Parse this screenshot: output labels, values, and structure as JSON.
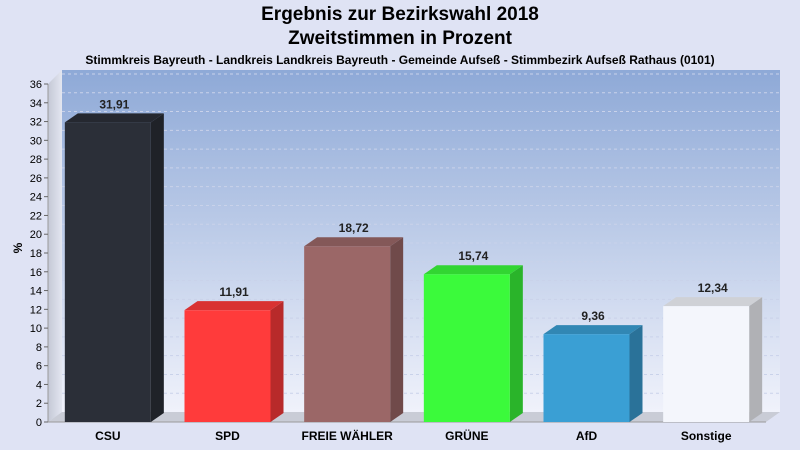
{
  "chart_data": {
    "type": "bar",
    "title": "Ergebnis zur Bezirkswahl 2018",
    "subtitle": "Zweitstimmen in Prozent",
    "subsubtitle": "Stimmkreis Bayreuth - Landkreis Landkreis Bayreuth - Gemeinde Aufseß - Stimmbezirk Aufseß Rathaus (0101)",
    "ylabel": "%",
    "xlabel": "",
    "ylim": [
      0,
      36
    ],
    "yticks": [
      0,
      2,
      4,
      6,
      8,
      10,
      12,
      14,
      16,
      18,
      20,
      22,
      24,
      26,
      28,
      30,
      32,
      34,
      36
    ],
    "categories": [
      "CSU",
      "SPD",
      "FREIE WÄHLER",
      "GRÜNE",
      "AfD",
      "Sonstige"
    ],
    "values": [
      31.91,
      11.91,
      18.72,
      15.74,
      9.36,
      12.34
    ],
    "value_labels": [
      "31,91",
      "11,91",
      "18,72",
      "15,74",
      "9,36",
      "12,34"
    ],
    "colors": [
      "#2b2f38",
      "#ff3b3b",
      "#9b6767",
      "#3bfa3b",
      "#3a9fd4",
      "#f4f6fc"
    ],
    "grid": true,
    "legend": "none"
  }
}
